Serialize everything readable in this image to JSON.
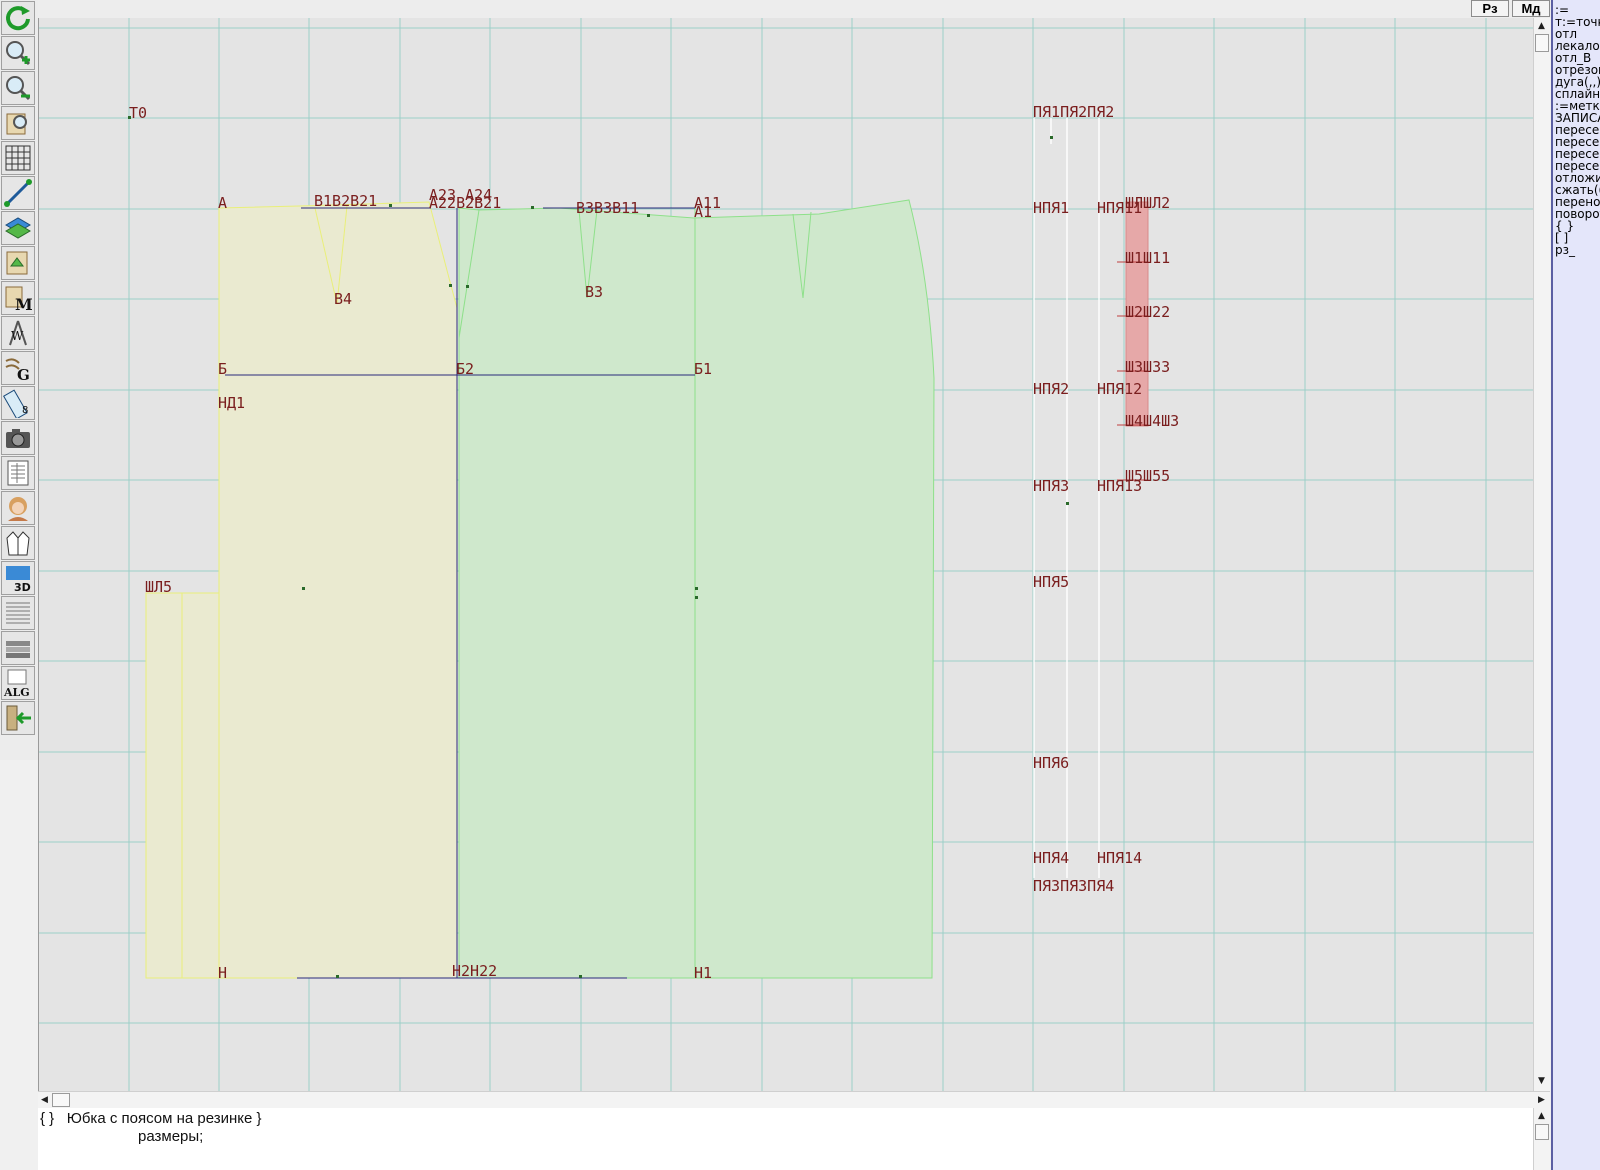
{
  "toolbar": {
    "tools": [
      {
        "icon": "refresh-icon"
      },
      {
        "icon": "zoom-in-icon"
      },
      {
        "icon": "zoom-out-icon"
      },
      {
        "icon": "zoom-fit-icon"
      },
      {
        "icon": "grid-icon"
      },
      {
        "icon": "line-tool-icon"
      },
      {
        "icon": "layers-icon"
      },
      {
        "icon": "measure-icon"
      },
      {
        "icon": "model-m-icon"
      },
      {
        "icon": "compass-w-icon"
      },
      {
        "icon": "gradation-g-icon"
      },
      {
        "icon": "ruler-icon"
      },
      {
        "icon": "camera-icon"
      },
      {
        "icon": "table-icon"
      },
      {
        "icon": "avatar-icon"
      },
      {
        "icon": "jacket-icon"
      },
      {
        "icon": "3d-icon"
      },
      {
        "icon": "document-icon"
      },
      {
        "icon": "library-icon"
      },
      {
        "icon": "alg-icon"
      },
      {
        "icon": "exit-icon"
      }
    ]
  },
  "topbar": {
    "rz_label": "Рз",
    "md_label": "Мд"
  },
  "canvas": {
    "labels": [
      {
        "name": "label-T0",
        "text": "Т0"
      },
      {
        "name": "label-A",
        "text": "А"
      },
      {
        "name": "label-B1B2B21",
        "text": "В1В2В21"
      },
      {
        "name": "label-A23A24",
        "text": "А23 А24"
      },
      {
        "name": "label-A22B21",
        "text": "А22В2В21"
      },
      {
        "name": "label-BBB11",
        "text": "В3В3В11"
      },
      {
        "name": "label-A11",
        "text": "А11"
      },
      {
        "name": "label-A1",
        "text": "А1"
      },
      {
        "name": "label-B4",
        "text": "В4"
      },
      {
        "name": "label-B3",
        "text": "В3"
      },
      {
        "name": "label-Б",
        "text": "Б"
      },
      {
        "name": "label-Б2",
        "text": "Б2"
      },
      {
        "name": "label-Б1",
        "text": "Б1"
      },
      {
        "name": "label-НД1",
        "text": "НД1"
      },
      {
        "name": "label-ШЛ5",
        "text": "ШЛ5"
      },
      {
        "name": "label-Н",
        "text": "Н"
      },
      {
        "name": "label-Н2",
        "text": "Н2Н22"
      },
      {
        "name": "label-Н1",
        "text": "Н1"
      },
      {
        "name": "label-ПЯ1",
        "text": "ПЯ1ПЯ2ПЯ2"
      },
      {
        "name": "label-НПЯ1",
        "text": "НПЯ1"
      },
      {
        "name": "label-НПЯ11",
        "text": "НПЯ11"
      },
      {
        "name": "label-ШЛ2",
        "text": "ШЛШЛ2"
      },
      {
        "name": "label-Ш11",
        "text": "Ш1Ш11"
      },
      {
        "name": "label-Ш22",
        "text": "Ш2Ш22"
      },
      {
        "name": "label-Ш33",
        "text": "Ш3Ш33"
      },
      {
        "name": "label-Ш44",
        "text": "Ш4Ш4Ш3"
      },
      {
        "name": "label-Ш55",
        "text": "Ш5Ш55"
      },
      {
        "name": "label-НПЯ2",
        "text": "НПЯ2"
      },
      {
        "name": "label-НПЯ12",
        "text": "НПЯ12"
      },
      {
        "name": "label-НПЯ3",
        "text": "НПЯ3"
      },
      {
        "name": "label-НПЯ13",
        "text": "НПЯ13"
      },
      {
        "name": "label-НПЯ5",
        "text": "НПЯ5"
      },
      {
        "name": "label-НПЯ6",
        "text": "НПЯ6"
      },
      {
        "name": "label-НПЯ4",
        "text": "НПЯ4"
      },
      {
        "name": "label-НПЯ14",
        "text": "НПЯ14"
      },
      {
        "name": "label-ПЯ3",
        "text": "ПЯ3ПЯ3ПЯ4"
      }
    ]
  },
  "command_panel": {
    "commands": [
      ":=",
      "т:=точка",
      "отл",
      "лекало",
      "отл_В",
      "отрезок",
      "дуга(,,)",
      "сплайн_",
      ":=метка",
      "ЗАПИСА",
      "пересеч",
      "пересеч",
      "пересеч",
      "пересеч",
      "отложит",
      "сжать(()",
      "перенос",
      "поворот",
      "{ }",
      "[ ]",
      "рз_"
    ]
  },
  "editor": {
    "line1": "{ }   Юбка с поясом на резинке }",
    "line2": "размеры;"
  },
  "colors": {
    "canvas_bg": "#e4e4e4",
    "grid": "#9ccfc8",
    "front_panel": "#eaead0",
    "back_panel": "#cfe8cc",
    "label": "#7a1e1e",
    "waistband": "#e6a8a8",
    "panel_accent": "#5b5fa3"
  }
}
